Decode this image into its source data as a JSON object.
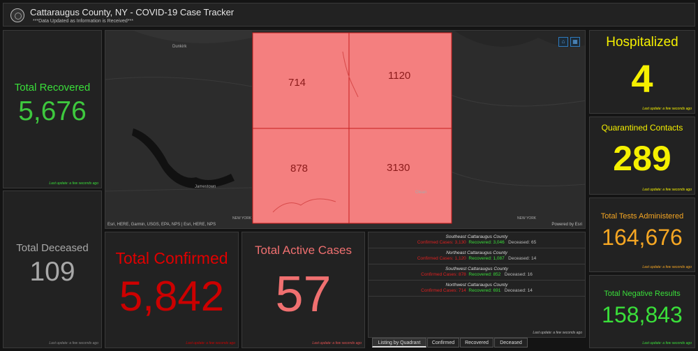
{
  "header": {
    "title": "Cattaraugus County, NY - COVID-19 Case Tracker",
    "subtitle": "***Data Updated as Information is Received***"
  },
  "last_update": "Last update: a few seconds ago",
  "recovered": {
    "title": "Total Recovered",
    "value": "5,676"
  },
  "deceased": {
    "title": "Total Deceased",
    "value": "109"
  },
  "confirmed": {
    "title": "Total Confirmed",
    "value": "5,842"
  },
  "active": {
    "title": "Total Active Cases",
    "value": "57"
  },
  "hospitalized": {
    "title": "Hospitalized",
    "value": "4"
  },
  "quarantined": {
    "title": "Quarantined Contacts",
    "value": "289"
  },
  "tests": {
    "title": "Total Tests Administered",
    "value": "164,676"
  },
  "negative": {
    "title": "Total Negative Results",
    "value": "158,843"
  },
  "map": {
    "quadrants": {
      "nw": "714",
      "ne": "1120",
      "sw": "878",
      "se": "3130"
    },
    "towns": {
      "dunkirk": "Dunkirk",
      "jamestown": "Jamestown",
      "olean": "Olean",
      "ny1": "NEW YORK",
      "ny2": "NEW YORK"
    },
    "attribution": "Esri, HERE, Garmin, USGS, EPA, NPS | Esri, HERE, NPS",
    "powered_by": "Powered by Esri"
  },
  "list": {
    "rows": [
      {
        "name": "Southeast Cattaraugus County",
        "confirmed": "Confirmed Cases: 3,130",
        "recovered": "Recovered: 3,046",
        "deceased": "Deceased: 65"
      },
      {
        "name": "Northeast Cattaraugus County",
        "confirmed": "Confirmed Cases: 1,120",
        "recovered": "Recovered: 1,087",
        "deceased": "Deceased: 14"
      },
      {
        "name": "Southwest Cattaraugus County",
        "confirmed": "Confirmed Cases: 878",
        "recovered": "Recovered: 852",
        "deceased": "Deceased: 16"
      },
      {
        "name": "Northwest Cattaraugus County",
        "confirmed": "Confirmed Cases: 714",
        "recovered": "Recovered: 691",
        "deceased": "Deceased: 14"
      }
    ]
  },
  "tabs": [
    "Listing by Quadrant",
    "Confirmed",
    "Recovered",
    "Deceased"
  ],
  "colors": {
    "green": "#3adf3a",
    "yellow": "#f5f000",
    "orange": "#f5a623",
    "red": "#e00000",
    "pink": "#f07070",
    "grey": "#a8a8a8"
  }
}
